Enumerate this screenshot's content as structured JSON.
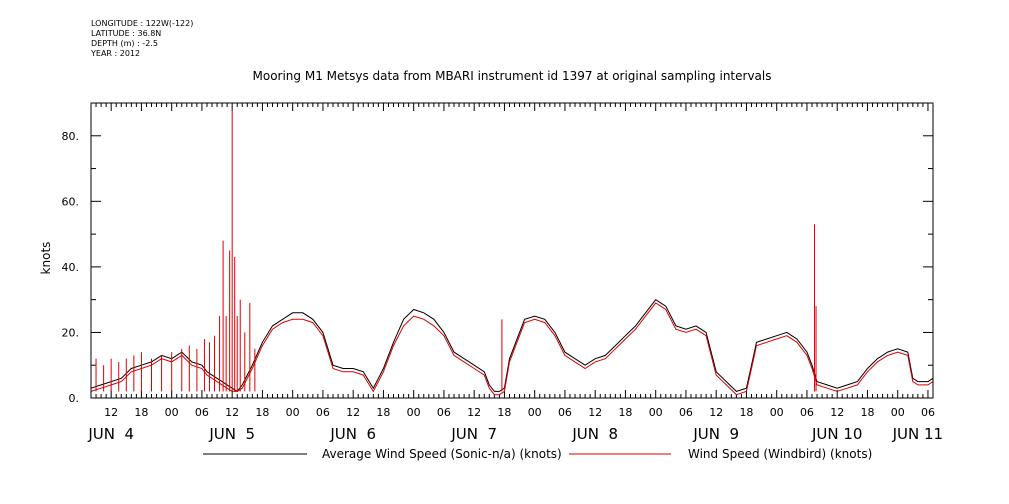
{
  "metadata": {
    "longitude": "LONGITUDE : 122W(-122)",
    "latitude": "LATITUDE : 36.8N",
    "depth": "DEPTH (m) : -2.5",
    "year": "YEAR : 2012"
  },
  "chart_data": {
    "type": "line",
    "title": "Mooring M1 Metsys data from MBARI instrument id 1397 at original sampling intervals",
    "ylabel": "knots",
    "xlabel": "",
    "ylim": [
      0,
      90
    ],
    "xlim_hours": [
      8,
      175
    ],
    "y_ticks": [
      0,
      20,
      40,
      60,
      80
    ],
    "y_tick_labels": [
      "0.",
      "20.",
      "40.",
      "60.",
      "80."
    ],
    "x_hour_ticks": [
      {
        "h": 12,
        "label": "12"
      },
      {
        "h": 18,
        "label": "18"
      },
      {
        "h": 24,
        "label": "00"
      },
      {
        "h": 30,
        "label": "06"
      },
      {
        "h": 36,
        "label": "12"
      },
      {
        "h": 42,
        "label": "18"
      },
      {
        "h": 48,
        "label": "00"
      },
      {
        "h": 54,
        "label": "06"
      },
      {
        "h": 60,
        "label": "12"
      },
      {
        "h": 66,
        "label": "18"
      },
      {
        "h": 72,
        "label": "00"
      },
      {
        "h": 78,
        "label": "06"
      },
      {
        "h": 84,
        "label": "12"
      },
      {
        "h": 90,
        "label": "18"
      },
      {
        "h": 96,
        "label": "00"
      },
      {
        "h": 102,
        "label": "06"
      },
      {
        "h": 108,
        "label": "12"
      },
      {
        "h": 114,
        "label": "18"
      },
      {
        "h": 120,
        "label": "00"
      },
      {
        "h": 126,
        "label": "06"
      },
      {
        "h": 132,
        "label": "12"
      },
      {
        "h": 138,
        "label": "18"
      },
      {
        "h": 144,
        "label": "00"
      },
      {
        "h": 150,
        "label": "06"
      },
      {
        "h": 156,
        "label": "12"
      },
      {
        "h": 162,
        "label": "18"
      },
      {
        "h": 168,
        "label": "00"
      },
      {
        "h": 174,
        "label": "06"
      }
    ],
    "day_labels": [
      {
        "h": 12,
        "label": "JUN  4"
      },
      {
        "h": 36,
        "label": "JUN  5"
      },
      {
        "h": 60,
        "label": "JUN  6"
      },
      {
        "h": 84,
        "label": "JUN  7"
      },
      {
        "h": 108,
        "label": "JUN  8"
      },
      {
        "h": 132,
        "label": "JUN  9"
      },
      {
        "h": 156,
        "label": "JUN 10"
      },
      {
        "h": 172,
        "label": "JUN 11"
      }
    ],
    "legend_placement": "bottom",
    "series": [
      {
        "name": "Average Wind Speed (Sonic-n/a) (knots)",
        "color": "#000000",
        "points": [
          [
            8,
            3
          ],
          [
            10,
            4
          ],
          [
            12,
            5
          ],
          [
            14,
            6
          ],
          [
            16,
            9
          ],
          [
            18,
            10
          ],
          [
            20,
            11
          ],
          [
            22,
            13
          ],
          [
            24,
            12
          ],
          [
            26,
            14
          ],
          [
            28,
            11
          ],
          [
            30,
            10
          ],
          [
            31,
            8
          ],
          [
            32,
            7
          ],
          [
            33,
            6
          ],
          [
            34,
            5
          ],
          [
            35,
            4
          ],
          [
            36,
            3
          ],
          [
            37,
            2
          ],
          [
            38,
            4
          ],
          [
            39,
            7
          ],
          [
            40,
            10
          ],
          [
            42,
            17
          ],
          [
            44,
            22
          ],
          [
            46,
            24
          ],
          [
            48,
            26
          ],
          [
            50,
            26
          ],
          [
            52,
            24
          ],
          [
            54,
            20
          ],
          [
            55,
            15
          ],
          [
            56,
            10
          ],
          [
            58,
            9
          ],
          [
            60,
            9
          ],
          [
            62,
            8
          ],
          [
            64,
            3
          ],
          [
            65,
            6
          ],
          [
            66,
            9
          ],
          [
            68,
            17
          ],
          [
            70,
            24
          ],
          [
            72,
            27
          ],
          [
            74,
            26
          ],
          [
            76,
            24
          ],
          [
            78,
            20
          ],
          [
            80,
            14
          ],
          [
            82,
            12
          ],
          [
            84,
            10
          ],
          [
            86,
            8
          ],
          [
            87,
            4
          ],
          [
            88,
            2
          ],
          [
            89,
            2
          ],
          [
            90,
            3
          ],
          [
            91,
            12
          ],
          [
            92,
            16
          ],
          [
            94,
            24
          ],
          [
            96,
            25
          ],
          [
            98,
            24
          ],
          [
            100,
            20
          ],
          [
            102,
            14
          ],
          [
            104,
            12
          ],
          [
            106,
            10
          ],
          [
            108,
            12
          ],
          [
            110,
            13
          ],
          [
            112,
            16
          ],
          [
            114,
            19
          ],
          [
            116,
            22
          ],
          [
            118,
            26
          ],
          [
            120,
            30
          ],
          [
            122,
            28
          ],
          [
            124,
            22
          ],
          [
            126,
            21
          ],
          [
            128,
            22
          ],
          [
            130,
            20
          ],
          [
            132,
            8
          ],
          [
            134,
            5
          ],
          [
            136,
            2
          ],
          [
            138,
            3
          ],
          [
            139,
            10
          ],
          [
            140,
            17
          ],
          [
            142,
            18
          ],
          [
            144,
            19
          ],
          [
            146,
            20
          ],
          [
            148,
            18
          ],
          [
            150,
            14
          ],
          [
            151,
            10
          ],
          [
            152,
            5
          ],
          [
            154,
            4
          ],
          [
            156,
            3
          ],
          [
            158,
            4
          ],
          [
            160,
            5
          ],
          [
            162,
            9
          ],
          [
            164,
            12
          ],
          [
            166,
            14
          ],
          [
            168,
            15
          ],
          [
            170,
            14
          ],
          [
            171,
            6
          ],
          [
            172,
            5
          ],
          [
            174,
            5
          ],
          [
            175,
            6
          ]
        ]
      },
      {
        "name": "Wind Speed (Windbird) (knots)",
        "color": "#e00000",
        "points": [
          [
            8,
            2
          ],
          [
            10,
            3
          ],
          [
            12,
            4
          ],
          [
            14,
            5
          ],
          [
            16,
            8
          ],
          [
            18,
            9
          ],
          [
            20,
            10
          ],
          [
            22,
            12
          ],
          [
            24,
            11
          ],
          [
            26,
            13
          ],
          [
            28,
            10
          ],
          [
            30,
            9
          ],
          [
            31,
            7
          ],
          [
            32,
            6
          ],
          [
            33,
            5
          ],
          [
            34,
            4
          ],
          [
            35,
            3
          ],
          [
            36,
            2
          ],
          [
            37,
            2
          ],
          [
            38,
            3
          ],
          [
            39,
            6
          ],
          [
            40,
            9
          ],
          [
            42,
            16
          ],
          [
            44,
            21
          ],
          [
            46,
            23
          ],
          [
            48,
            24
          ],
          [
            50,
            24
          ],
          [
            52,
            23
          ],
          [
            54,
            19
          ],
          [
            55,
            14
          ],
          [
            56,
            9
          ],
          [
            58,
            8
          ],
          [
            60,
            8
          ],
          [
            62,
            7
          ],
          [
            64,
            2
          ],
          [
            65,
            5
          ],
          [
            66,
            8
          ],
          [
            68,
            16
          ],
          [
            70,
            22
          ],
          [
            72,
            25
          ],
          [
            74,
            24
          ],
          [
            76,
            22
          ],
          [
            78,
            19
          ],
          [
            80,
            13
          ],
          [
            82,
            11
          ],
          [
            84,
            9
          ],
          [
            86,
            7
          ],
          [
            87,
            3
          ],
          [
            88,
            1
          ],
          [
            89,
            1
          ],
          [
            90,
            2
          ],
          [
            91,
            11
          ],
          [
            92,
            15
          ],
          [
            94,
            23
          ],
          [
            96,
            24
          ],
          [
            98,
            23
          ],
          [
            100,
            19
          ],
          [
            102,
            13
          ],
          [
            104,
            11
          ],
          [
            106,
            9
          ],
          [
            108,
            11
          ],
          [
            110,
            12
          ],
          [
            112,
            15
          ],
          [
            114,
            18
          ],
          [
            116,
            21
          ],
          [
            118,
            25
          ],
          [
            120,
            29
          ],
          [
            122,
            27
          ],
          [
            124,
            21
          ],
          [
            126,
            20
          ],
          [
            128,
            21
          ],
          [
            130,
            19
          ],
          [
            132,
            7
          ],
          [
            134,
            4
          ],
          [
            136,
            1
          ],
          [
            138,
            2
          ],
          [
            139,
            9
          ],
          [
            140,
            16
          ],
          [
            142,
            17
          ],
          [
            144,
            18
          ],
          [
            146,
            19
          ],
          [
            148,
            17
          ],
          [
            150,
            13
          ],
          [
            151,
            9
          ],
          [
            152,
            4
          ],
          [
            154,
            3
          ],
          [
            156,
            2
          ],
          [
            158,
            3
          ],
          [
            160,
            4
          ],
          [
            162,
            8
          ],
          [
            164,
            11
          ],
          [
            166,
            13
          ],
          [
            168,
            14
          ],
          [
            170,
            13
          ],
          [
            171,
            5
          ],
          [
            172,
            4
          ],
          [
            174,
            4
          ],
          [
            175,
            5
          ]
        ],
        "spikes": [
          [
            9,
            12
          ],
          [
            10.5,
            10
          ],
          [
            12,
            12
          ],
          [
            13.5,
            11
          ],
          [
            15,
            12
          ],
          [
            16.5,
            13
          ],
          [
            18,
            14
          ],
          [
            20,
            12
          ],
          [
            22,
            13
          ],
          [
            24,
            14
          ],
          [
            26,
            15
          ],
          [
            27.5,
            16
          ],
          [
            29,
            15
          ],
          [
            30.5,
            18
          ],
          [
            31.5,
            17
          ],
          [
            32.5,
            19
          ],
          [
            33.5,
            25
          ],
          [
            34.2,
            48
          ],
          [
            34.8,
            25
          ],
          [
            35.5,
            45
          ],
          [
            36,
            88
          ],
          [
            36.5,
            43
          ],
          [
            37,
            25
          ],
          [
            37.6,
            30
          ],
          [
            38.5,
            20
          ],
          [
            39.5,
            29
          ],
          [
            40.5,
            15
          ],
          [
            89.5,
            24
          ],
          [
            151.5,
            53
          ],
          [
            151.8,
            28
          ]
        ]
      }
    ]
  }
}
